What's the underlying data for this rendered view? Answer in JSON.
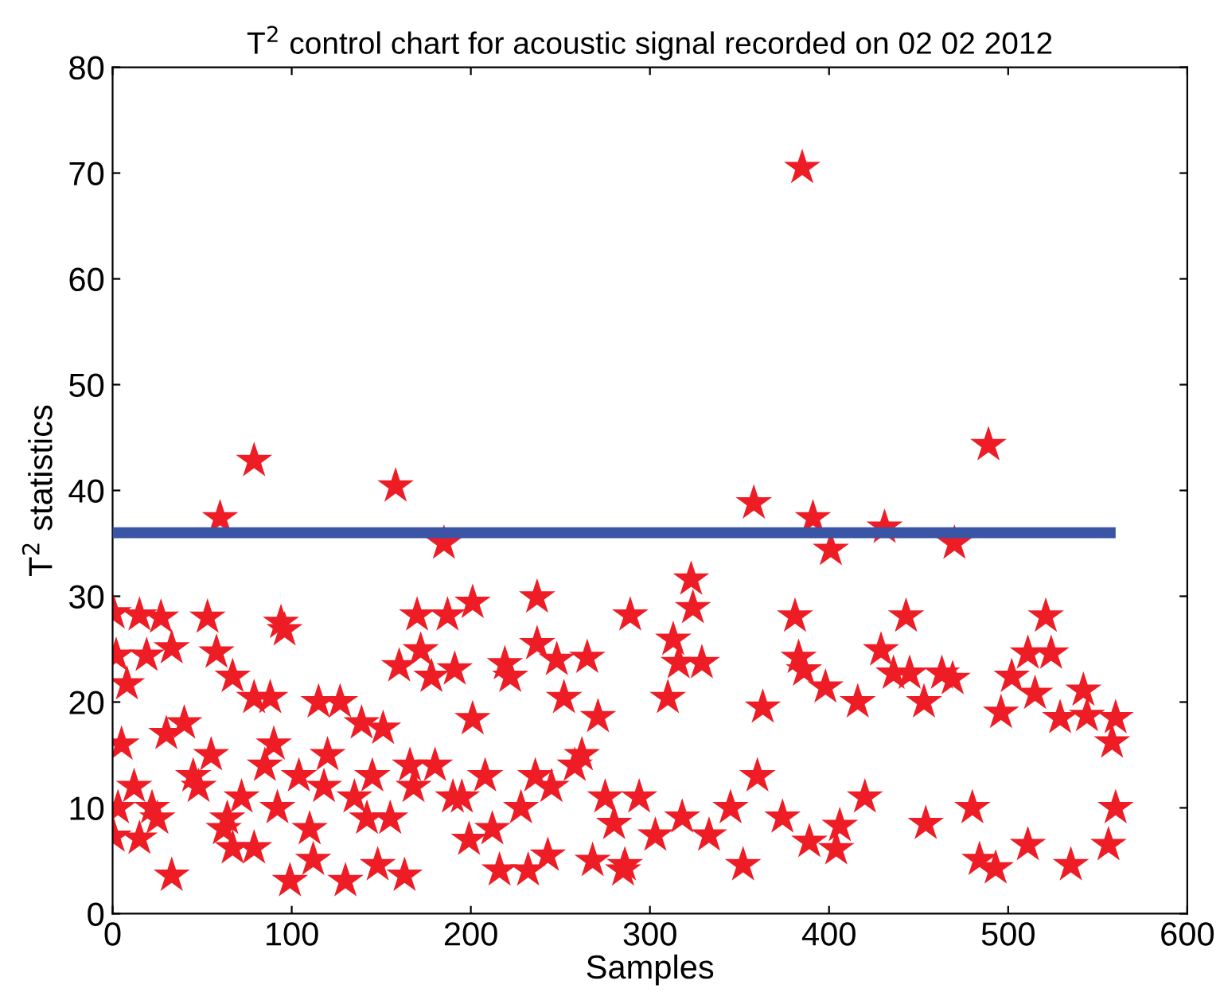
{
  "chart_data": {
    "type": "scatter",
    "title": "T$^{2}$ control chart for acoustic signal recorded on 02 02 2012",
    "xlabel": "Samples",
    "ylabel": "T$^{2}$ statistics",
    "xlim": [
      0,
      600
    ],
    "ylim": [
      0,
      80
    ],
    "xticks": [
      0,
      100,
      200,
      300,
      400,
      500,
      600
    ],
    "yticks": [
      0,
      10,
      20,
      30,
      40,
      50,
      60,
      70,
      80
    ],
    "series": [
      {
        "marker": "star",
        "color": "#ee1c25",
        "x": [
          385,
          489,
          79,
          158,
          60,
          185,
          358,
          391,
          401,
          431,
          470,
          0.6,
          15,
          27,
          53,
          94,
          96,
          2,
          8,
          19,
          33,
          58,
          67,
          79,
          88,
          115,
          127,
          139,
          151,
          160,
          172,
          170,
          178,
          187,
          191,
          201,
          201,
          219,
          222,
          237,
          237,
          248,
          252,
          265,
          271,
          289,
          0.6,
          15,
          33,
          67,
          79,
          99,
          112,
          130,
          148,
          163,
          199,
          216,
          232,
          243,
          268,
          286,
          285,
          323,
          324,
          313,
          316,
          329,
          310,
          352,
          363,
          381,
          383,
          386,
          398,
          416,
          404,
          429,
          443,
          436,
          445,
          453,
          463,
          469,
          484,
          493,
          496,
          502,
          511,
          521,
          524,
          515,
          529,
          535,
          542,
          544,
          560,
          558,
          560,
          556,
          511,
          480,
          454,
          420,
          406,
          389,
          374,
          360,
          345,
          333,
          318,
          303,
          294,
          280,
          5,
          12,
          22,
          30,
          40,
          48,
          55,
          64,
          72,
          85,
          92,
          104,
          110,
          120,
          135,
          145,
          155,
          168,
          180,
          195,
          208,
          228,
          245,
          258,
          275,
          3,
          25,
          45,
          62,
          90,
          118,
          142,
          166,
          190,
          212,
          236,
          262
        ],
        "values": [
          70.5,
          44.3,
          42.8,
          40.4,
          37.4,
          35,
          38.8,
          37.4,
          34.4,
          36.5,
          35,
          28.4,
          28.2,
          28,
          28,
          27.5,
          26.8,
          24.4,
          21.7,
          24.4,
          25.1,
          24.7,
          22.4,
          20.4,
          20.4,
          20,
          20,
          18,
          17.5,
          23.4,
          24.9,
          28.2,
          22.4,
          28.2,
          23.1,
          29.4,
          18.4,
          23.6,
          22.4,
          29.9,
          25.5,
          24,
          20.4,
          24.2,
          18.6,
          28.2,
          7.3,
          7.1,
          3.6,
          6.2,
          6.2,
          3.1,
          5.1,
          3.1,
          4.6,
          3.6,
          7,
          4.1,
          4.1,
          5.5,
          5,
          4.6,
          4.1,
          31.6,
          28.9,
          25.9,
          23.7,
          23.7,
          20.4,
          4.6,
          19.5,
          28.1,
          24.2,
          23,
          21.4,
          20,
          6.1,
          24.9,
          28.1,
          22.7,
          22.7,
          20,
          22.7,
          22.2,
          5.1,
          4.3,
          19,
          22.4,
          24.6,
          28.1,
          24.6,
          20.8,
          18.5,
          4.6,
          21.1,
          18.7,
          18.5,
          16.2,
          10,
          6.5,
          6.5,
          10,
          8.5,
          11,
          8.3,
          6.8,
          9.1,
          13,
          10,
          7.4,
          9.1,
          7.4,
          11,
          8.5,
          16,
          12,
          10,
          17,
          18,
          12,
          15,
          9,
          11,
          14,
          10,
          13,
          8,
          15,
          11,
          13,
          9,
          12,
          14,
          11,
          13,
          10,
          12,
          14,
          11,
          10,
          9,
          13,
          8,
          16,
          12,
          9,
          14,
          11,
          8,
          13,
          15
        ]
      },
      {
        "type": "line",
        "marker": "none",
        "line_style": "solid",
        "color": "#3a55a5",
        "x": [
          0,
          560
        ],
        "values": [
          36,
          36
        ]
      }
    ]
  }
}
